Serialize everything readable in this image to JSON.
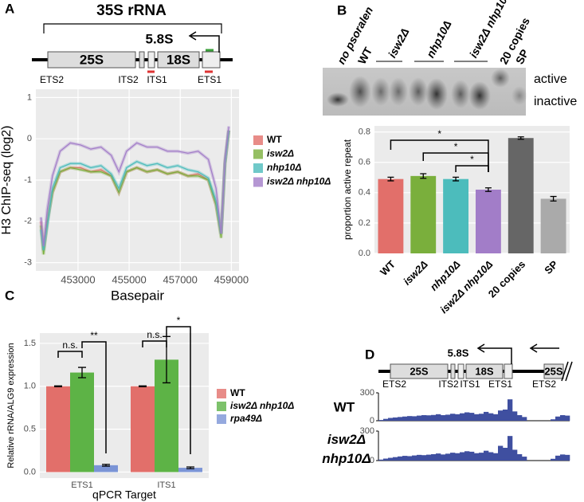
{
  "panels": [
    "A",
    "B",
    "C",
    "D"
  ],
  "diagram_a": {
    "title": "35S rRNA",
    "segments": [
      "25S",
      "5.8S",
      "18S"
    ],
    "regions": [
      "ETS2",
      "ITS2",
      "ITS1",
      "ETS1"
    ]
  },
  "diagram_d": {
    "segments": [
      "25S",
      "5.8S",
      "18S",
      "25S"
    ],
    "regions": [
      "ETS2",
      "ITS2",
      "ITS1",
      "ETS1",
      "ETS2"
    ]
  },
  "gel": {
    "lanes": [
      "no psoralen",
      "WT",
      "isw2Δ",
      "nhp10Δ",
      "isw2Δ nhp10Δ",
      "20 copies",
      "SP"
    ],
    "bands": [
      "active",
      "inactive"
    ]
  },
  "chart_data": [
    {
      "type": "line",
      "x_label": "Basepair",
      "y_label": "H3 ChIP-seq (log2)",
      "x": [
        451550,
        451650,
        451800,
        452000,
        452300,
        452700,
        453100,
        453500,
        453900,
        454300,
        454600,
        454900,
        455300,
        455700,
        456100,
        456500,
        456900,
        457300,
        457700,
        458100,
        458400,
        458600,
        458750,
        458900
      ],
      "series": [
        {
          "name": "WT",
          "color": "#e26f6a",
          "values": [
            -2.0,
            -2.7,
            -2.0,
            -1.3,
            -0.8,
            -0.7,
            -0.7,
            -0.8,
            -0.75,
            -0.9,
            -1.3,
            -0.8,
            -0.7,
            -0.8,
            -0.75,
            -0.85,
            -0.8,
            -0.9,
            -0.85,
            -1.0,
            -1.6,
            -2.3,
            -0.6,
            0.2
          ]
        },
        {
          "name": "isw2Δ",
          "color": "#7aaf3c",
          "values": [
            -2.1,
            -2.8,
            -2.0,
            -1.3,
            -0.8,
            -0.7,
            -0.75,
            -0.8,
            -0.8,
            -0.9,
            -1.3,
            -0.8,
            -0.7,
            -0.8,
            -0.75,
            -0.85,
            -0.8,
            -0.9,
            -0.9,
            -1.0,
            -1.6,
            -2.4,
            -0.6,
            0.2
          ]
        },
        {
          "name": "nhp10Δ",
          "color": "#4cbcbc",
          "values": [
            -2.2,
            -2.7,
            -2.1,
            -1.2,
            -0.7,
            -0.6,
            -0.6,
            -0.7,
            -0.65,
            -0.85,
            -1.2,
            -0.7,
            -0.55,
            -0.65,
            -0.6,
            -0.7,
            -0.65,
            -0.75,
            -0.8,
            -0.95,
            -1.5,
            -2.3,
            -0.6,
            0.2
          ]
        },
        {
          "name": "isw2Δ nhp10Δ",
          "color": "#a27dc8",
          "values": [
            -1.9,
            -2.6,
            -1.7,
            -0.9,
            -0.3,
            -0.1,
            -0.15,
            -0.25,
            -0.2,
            -0.4,
            -0.8,
            -0.3,
            -0.1,
            -0.2,
            -0.2,
            -0.3,
            -0.3,
            -0.35,
            -0.3,
            -0.5,
            -1.2,
            -2.3,
            -0.5,
            0.3
          ]
        }
      ],
      "xlim": [
        451350,
        459300
      ],
      "xticks": [
        453000,
        455000,
        457000,
        459000
      ],
      "ylim": [
        -3.2,
        1.2
      ],
      "yticks": [
        -3,
        -2,
        -1,
        0,
        1
      ],
      "grid": true,
      "legend": "right"
    },
    {
      "type": "bar",
      "y_label": "proportion active repeat",
      "categories": [
        "WT",
        "isw2Δ",
        "nhp10Δ",
        "isw2Δ nhp10Δ",
        "20 copies",
        "SP"
      ],
      "values": [
        0.49,
        0.51,
        0.49,
        0.42,
        0.76,
        0.36
      ],
      "errors": [
        0.012,
        0.015,
        0.012,
        0.012,
        0.008,
        0.015
      ],
      "colors": [
        "#e26f6a",
        "#7aaf3c",
        "#4cbcbc",
        "#a27dc8",
        "#666666",
        "#aaaaaa"
      ],
      "ylim": [
        0,
        0.84
      ],
      "yticks": [
        {
          "value": 0,
          "label": "0.0"
        },
        0.2,
        0.4,
        0.6,
        0.8
      ],
      "grid": true,
      "annotations": [
        "*",
        "*",
        "*"
      ]
    },
    {
      "type": "bar",
      "x_label": "qPCR Target",
      "y_label": "Relative rRNA/ALG9 expression",
      "categories": [
        "ETS1",
        "ITS1"
      ],
      "series": [
        {
          "name": "WT",
          "color": "#e26f6a",
          "values": [
            1.0,
            1.0
          ],
          "errors": [
            0.005,
            0.005
          ]
        },
        {
          "name": "isw2Δ nhp10Δ",
          "color": "#5db346",
          "values": [
            1.16,
            1.31
          ],
          "errors": [
            0.06,
            0.27
          ]
        },
        {
          "name": "rpa49Δ",
          "color": "#7b94d6",
          "values": [
            0.08,
            0.05
          ],
          "errors": [
            0.01,
            0.01
          ]
        }
      ],
      "ylim": [
        -0.07,
        1.62
      ],
      "yticks": [
        {
          "value": 0,
          "label": "0.0"
        },
        0.5,
        {
          "value": 1,
          "label": "1.0"
        },
        1.5
      ],
      "grid": true,
      "legend": "right",
      "annotations": [
        "n.s.",
        "**",
        "n.s.",
        "*"
      ]
    },
    {
      "type": "coverage",
      "title": "WT",
      "color": "#3f4fa0",
      "ylim": [
        0,
        300
      ],
      "yticks": [
        0,
        300
      ],
      "values": [
        8,
        20,
        30,
        35,
        40,
        45,
        50,
        48,
        55,
        60,
        58,
        62,
        70,
        60,
        65,
        75,
        70,
        80,
        90,
        85,
        70,
        75,
        95,
        80,
        70,
        110,
        120,
        230,
        100,
        60,
        40,
        0,
        0,
        0,
        0,
        0,
        15,
        45,
        60,
        55
      ]
    },
    {
      "type": "coverage",
      "title": "isw2Δ nhp10Δ",
      "color": "#3f4fa0",
      "ylim": [
        0,
        300
      ],
      "yticks": [
        0,
        300
      ],
      "values": [
        10,
        20,
        28,
        35,
        42,
        48,
        45,
        52,
        58,
        55,
        60,
        65,
        72,
        62,
        70,
        80,
        75,
        85,
        95,
        90,
        75,
        80,
        100,
        85,
        75,
        150,
        130,
        250,
        110,
        65,
        40,
        0,
        0,
        0,
        0,
        0,
        18,
        50,
        62,
        58
      ]
    }
  ]
}
